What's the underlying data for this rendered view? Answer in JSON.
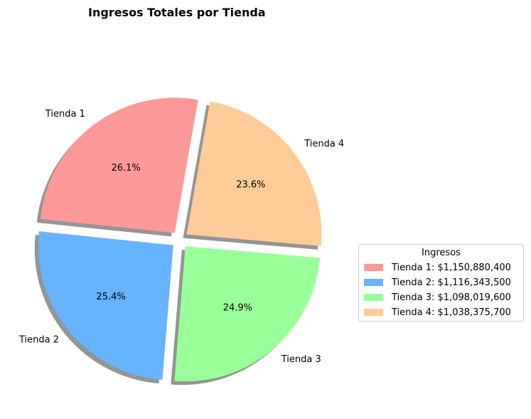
{
  "chart_data": {
    "type": "pie",
    "title": "Ingresos Totales por Tienda",
    "categories": [
      "Tienda 1",
      "Tienda 2",
      "Tienda 3",
      "Tienda 4"
    ],
    "values": [
      1150880400,
      1116343500,
      1098019600,
      1038375700
    ],
    "percent_labels": [
      "26.1%",
      "25.4%",
      "24.9%",
      "23.6%"
    ],
    "colors": [
      "#ff9999",
      "#66b3ff",
      "#99ff99",
      "#ffcc99"
    ],
    "legend": {
      "title": "Ingresos",
      "placement": "center-right",
      "entries": [
        "Tienda 1: $1,150,880,400",
        "Tienda 2: $1,116,343,500",
        "Tienda 3: $1,098,019,600",
        "Tienda 4: $1,038,375,700"
      ]
    },
    "start_angle_deg": 80,
    "explode": true,
    "shadow": true
  }
}
